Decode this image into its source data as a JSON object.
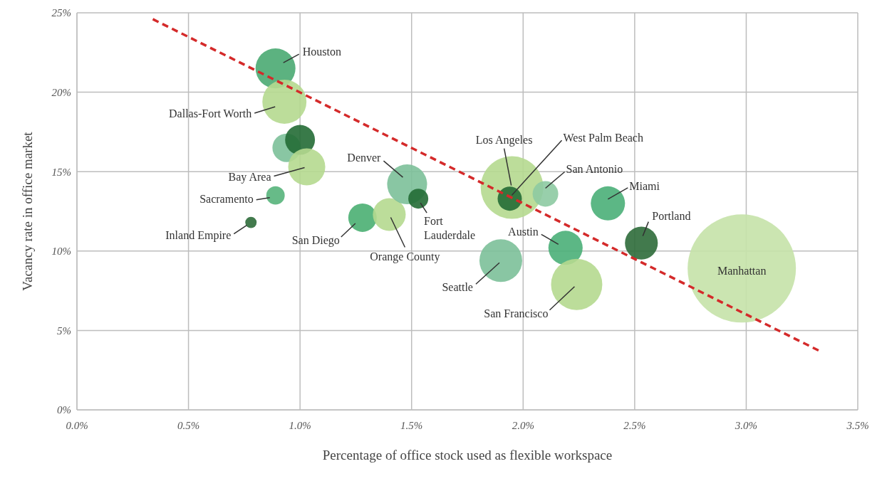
{
  "chart_data": {
    "type": "bubble",
    "xlabel": "Percentage of office stock used as flexible workspace",
    "ylabel": "Vacancy rate in office market",
    "xlim": [
      0,
      3.5
    ],
    "ylim": [
      0,
      25
    ],
    "xticks": [
      {
        "value": 0,
        "label": "0.0%"
      },
      {
        "value": 0.5,
        "label": "0.5%"
      },
      {
        "value": 1,
        "label": "1.0%"
      },
      {
        "value": 1.5,
        "label": "1.5%"
      },
      {
        "value": 2,
        "label": "2.0%"
      },
      {
        "value": 2.5,
        "label": "2.5%"
      },
      {
        "value": 3,
        "label": "3.0%"
      },
      {
        "value": 3.5,
        "label": "3.5%"
      }
    ],
    "yticks": [
      {
        "value": 0,
        "label": "0%"
      },
      {
        "value": 5,
        "label": "5%"
      },
      {
        "value": 10,
        "label": "10%"
      },
      {
        "value": 15,
        "label": "15%"
      },
      {
        "value": 20,
        "label": "20%"
      },
      {
        "value": 25,
        "label": "25%"
      }
    ],
    "grid": true,
    "series": [
      {
        "type": "bubble",
        "x": [
          0.89,
          0.93,
          0.94,
          1.0,
          1.03,
          0.89,
          0.78,
          1.28,
          1.4,
          1.48,
          1.53,
          1.95,
          1.94,
          2.1,
          2.38,
          2.53,
          2.19,
          1.9,
          2.24,
          2.98
        ],
        "values": [
          21.5,
          19.4,
          16.5,
          17.0,
          15.3,
          13.5,
          11.8,
          12.1,
          12.3,
          14.2,
          13.3,
          14.0,
          13.3,
          13.6,
          13.0,
          10.5,
          10.2,
          9.4,
          7.9,
          8.9
        ],
        "sizes": [
          0.136,
          0.166,
          0.069,
          0.076,
          0.117,
          0.029,
          0.011,
          0.069,
          0.092,
          0.136,
          0.034,
          0.335,
          0.05,
          0.056,
          0.1,
          0.092,
          0.1,
          0.156,
          0.224,
          1
        ],
        "colors": [
          "#4aaa72",
          "#b5d98f",
          "#7cc099",
          "#236b35",
          "#b5d98f",
          "#56b47b",
          "#2e6b3a",
          "#4aaf72",
          "#b5d98f",
          "#7cc099",
          "#236b35",
          "#b5d98f",
          "#236b35",
          "#8dcaa2",
          "#4aaf78",
          "#2e6b3a",
          "#4aaf78",
          "#7cc099",
          "#b5d98f",
          "#c5e2a8"
        ]
      },
      {
        "type": "line",
        "x": [
          0.34,
          3.33
        ],
        "values": [
          24.6,
          3.7
        ],
        "color": "#d42a2a",
        "line_style": "dashed",
        "marker": "none"
      }
    ],
    "annotations": [
      {
        "text": "Houston",
        "x": 0.89,
        "y": 21.5
      },
      {
        "text": "Dallas-Fort Worth",
        "x": 0.93,
        "y": 19.4
      },
      {
        "text": "Bay Area",
        "x": 1.03,
        "y": 15.3
      },
      {
        "text": "Sacramento",
        "x": 0.89,
        "y": 13.5
      },
      {
        "text": "Inland Empire",
        "x": 0.78,
        "y": 11.8
      },
      {
        "text": "San Diego",
        "x": 1.28,
        "y": 12.1
      },
      {
        "text": "Orange County",
        "x": 1.4,
        "y": 12.3
      },
      {
        "text": "Denver",
        "x": 1.48,
        "y": 14.2
      },
      {
        "text": "Fort Lauderdale",
        "x": 1.53,
        "y": 13.3
      },
      {
        "text": "Los Angeles",
        "x": 1.95,
        "y": 14.0
      },
      {
        "text": "West Palm Beach",
        "x": 1.94,
        "y": 13.3
      },
      {
        "text": "San Antonio",
        "x": 2.1,
        "y": 13.6
      },
      {
        "text": "Miami",
        "x": 2.38,
        "y": 13.0
      },
      {
        "text": "Portland",
        "x": 2.53,
        "y": 10.5
      },
      {
        "text": "Austin",
        "x": 2.19,
        "y": 10.2
      },
      {
        "text": "Seattle",
        "x": 1.9,
        "y": 9.4
      },
      {
        "text": "San Francisco",
        "x": 2.24,
        "y": 7.9
      },
      {
        "text": "Manhattan",
        "x": 2.98,
        "y": 8.9
      }
    ]
  }
}
